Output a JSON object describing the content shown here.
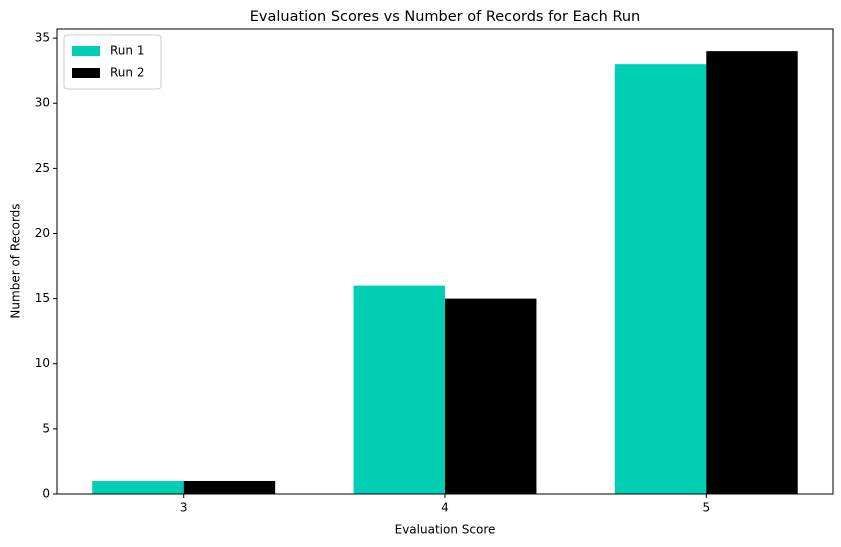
{
  "chart_data": {
    "type": "bar",
    "title": "Evaluation Scores vs Number of Records for Each Run",
    "x_label": "Evaluation Score",
    "y_label": "Number of Records",
    "x": [
      3,
      4,
      5
    ],
    "series": [
      {
        "name": "Run 1",
        "color": "#00cfb4",
        "values": [
          1,
          16,
          33
        ]
      },
      {
        "name": "Run 2",
        "color": "#000000",
        "values": [
          1,
          15,
          34
        ]
      }
    ],
    "xlim": [
      2.515,
      5.485
    ],
    "xticks": [
      3,
      4,
      5
    ],
    "ylim": [
      0,
      35.7
    ],
    "yticks": [
      0,
      5,
      10,
      15,
      20,
      25,
      30,
      35
    ],
    "legend": "upper left"
  }
}
